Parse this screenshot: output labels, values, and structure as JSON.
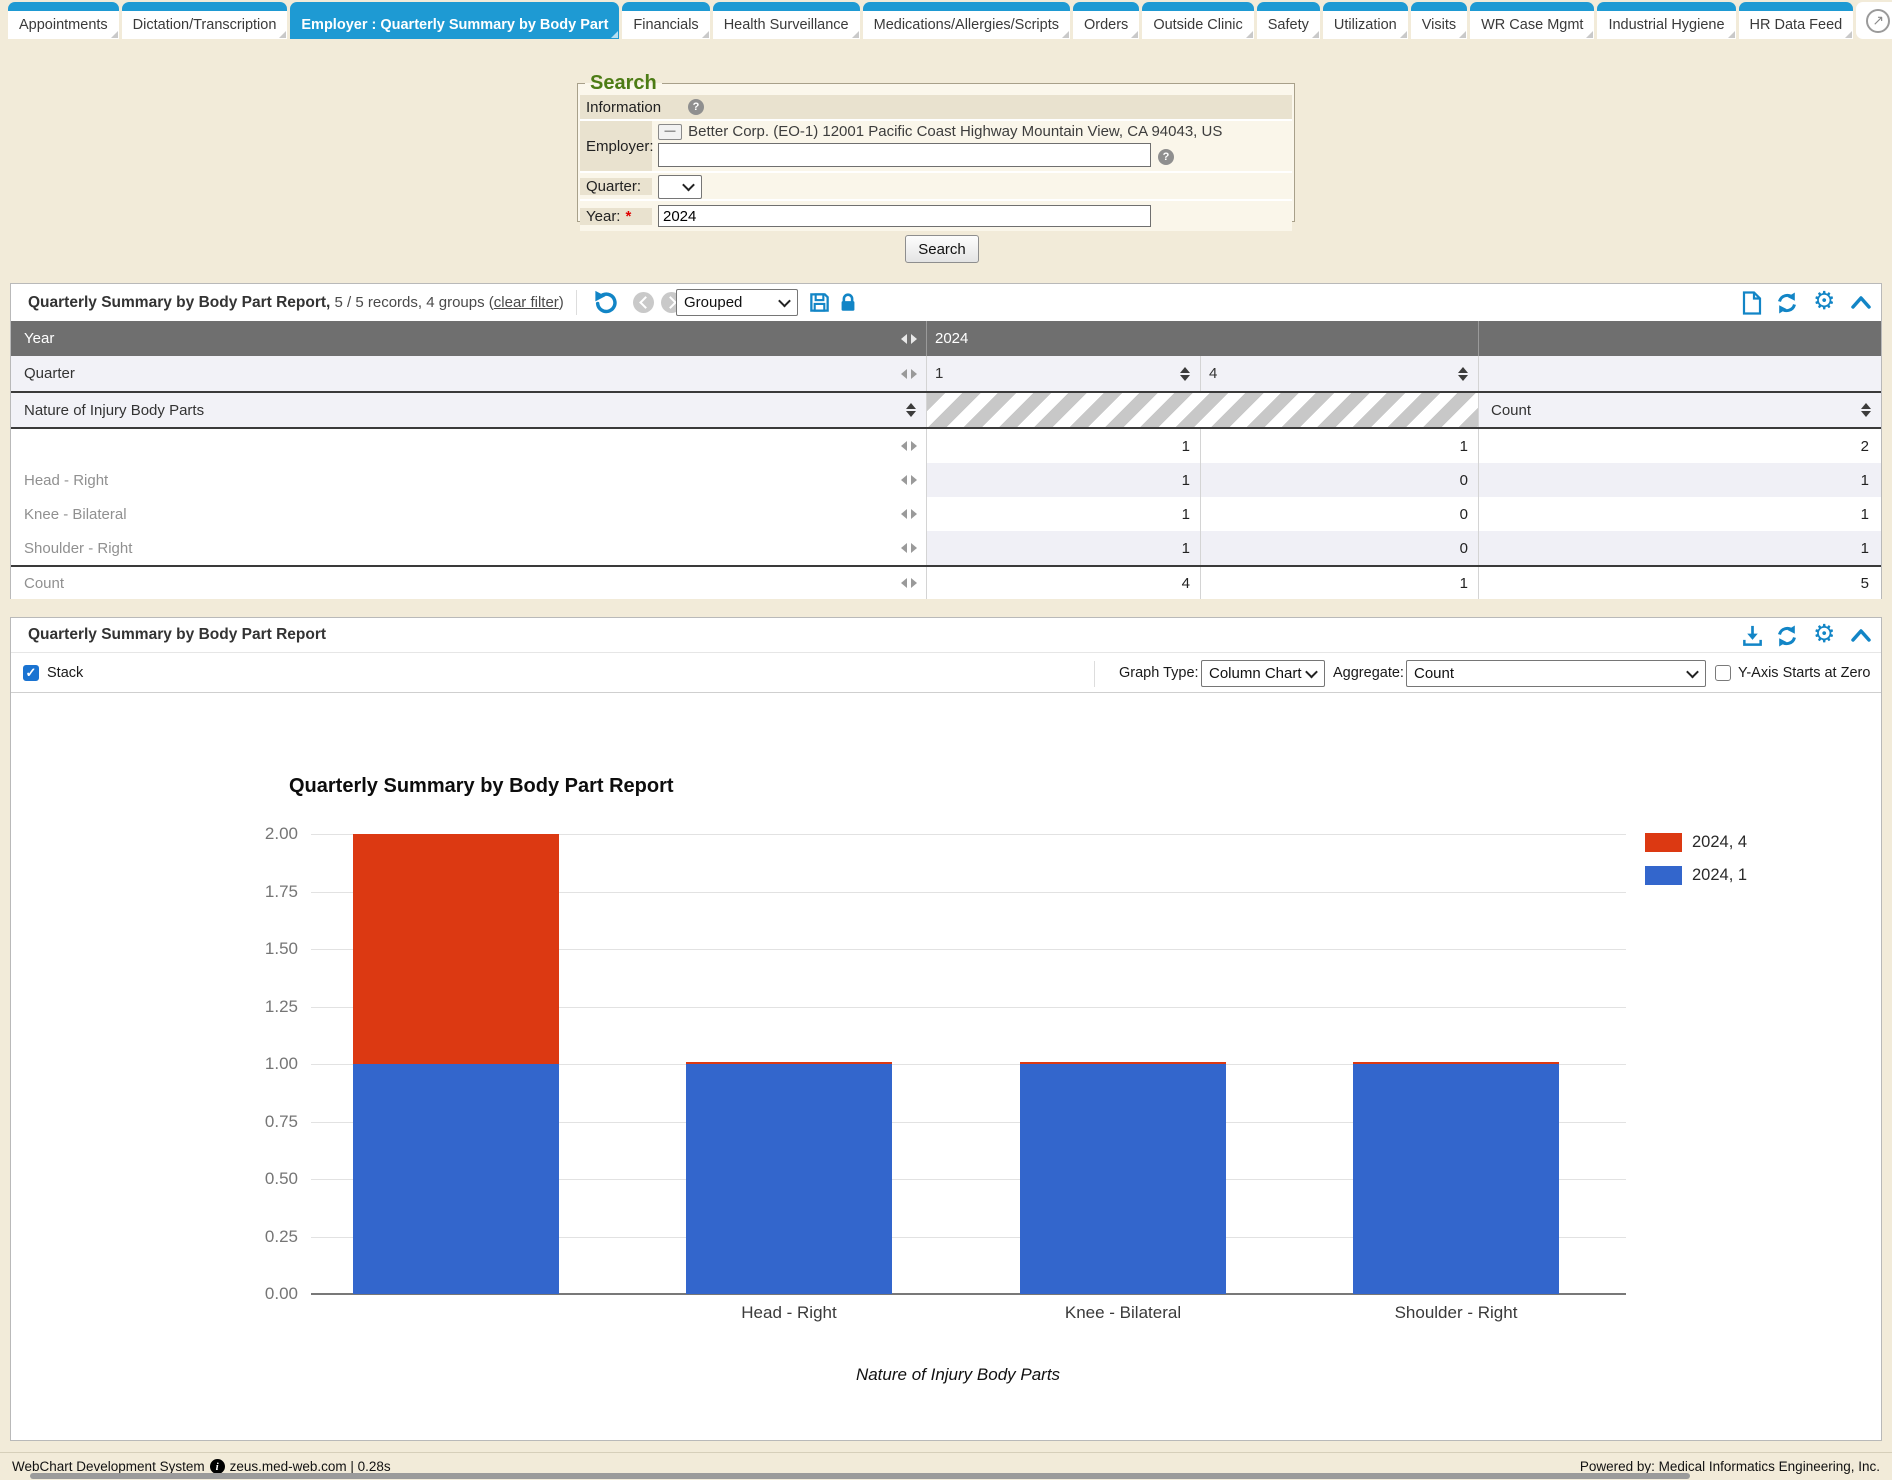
{
  "colors": {
    "tab_blue": "#1e9ad3",
    "icon_blue": "#1285c6",
    "page_bg": "#f2ebd9",
    "header_row_gray": "#6f6f6f",
    "legend_green": "#4d7c15",
    "bar_blue": "#3366cc",
    "bar_red": "#dc3912"
  },
  "tabs": {
    "items": [
      {
        "label": "Appointments",
        "active": false
      },
      {
        "label": "Dictation/Transcription",
        "active": false
      },
      {
        "label": "Employer : Quarterly Summary by Body Part",
        "active": true
      },
      {
        "label": "Financials",
        "active": false
      },
      {
        "label": "Health Surveillance",
        "active": false
      },
      {
        "label": "Medications/Allergies/Scripts",
        "active": false
      },
      {
        "label": "Orders",
        "active": false
      },
      {
        "label": "Outside Clinic",
        "active": false
      },
      {
        "label": "Safety",
        "active": false
      },
      {
        "label": "Utilization",
        "active": false
      },
      {
        "label": "Visits",
        "active": false
      },
      {
        "label": "WR Case Mgmt",
        "active": false
      },
      {
        "label": "Industrial Hygiene",
        "active": false
      },
      {
        "label": "HR Data Feed",
        "active": false
      }
    ],
    "overflow_icon": "external-link"
  },
  "search": {
    "legend": "Search",
    "information_label": "Information",
    "employer_label": "Employer:",
    "employer_collapse": "—",
    "employer_value": "Better Corp. (EO-1) 12001 Pacific Coast Highway Mountain View, CA 94043, US",
    "employer_input": "",
    "quarter_label": "Quarter:",
    "quarter_value": "",
    "year_label": "Year:",
    "required_marker": "*",
    "year_value": "2024",
    "search_button": "Search"
  },
  "report": {
    "title": "Quarterly Summary by Body Part Report,",
    "records_text": " 5 / 5 records, 4 groups (",
    "clear_filter": "clear filter",
    "records_close": ")",
    "view_select": "Grouped",
    "header": {
      "year_label": "Year",
      "year_value": "2024",
      "quarter_label": "Quarter",
      "quarter_col1": "1",
      "quarter_col2": "4",
      "nature_label": "Nature of Injury Body Parts",
      "count_label": "Count"
    },
    "rows": [
      {
        "label": "",
        "q1": "1",
        "q4": "1",
        "count": "2"
      },
      {
        "label": "Head - Right",
        "q1": "1",
        "q4": "0",
        "count": "1"
      },
      {
        "label": "Knee - Bilateral",
        "q1": "1",
        "q4": "0",
        "count": "1"
      },
      {
        "label": "Shoulder - Right",
        "q1": "1",
        "q4": "0",
        "count": "1"
      }
    ],
    "total": {
      "label": "Count",
      "q1": "4",
      "q4": "1",
      "count": "5"
    }
  },
  "chart_panel": {
    "title": "Quarterly Summary by Body Part Report",
    "stack_label": "Stack",
    "graph_type_label": "Graph Type:",
    "graph_type_value": "Column Chart",
    "aggregate_label": "Aggregate:",
    "aggregate_value": "Count",
    "y_axis_zero_label": "Y-Axis Starts at Zero"
  },
  "chart_data": {
    "type": "bar",
    "stacked": true,
    "title": "Quarterly Summary by Body Part Report",
    "xlabel": "Nature of Injury Body Parts",
    "ylabel": "",
    "categories": [
      "",
      "Head - Right",
      "Knee - Bilateral",
      "Shoulder - Right"
    ],
    "series": [
      {
        "name": "2024, 1",
        "color": "#3366cc",
        "values": [
          1,
          1,
          1,
          1
        ]
      },
      {
        "name": "2024, 4",
        "color": "#dc3912",
        "values": [
          1,
          0,
          0,
          0
        ]
      }
    ],
    "ylim": [
      0,
      2
    ],
    "yticks": [
      "0.00",
      "0.25",
      "0.50",
      "0.75",
      "1.00",
      "1.25",
      "1.50",
      "1.75",
      "2.00"
    ],
    "legend": [
      "2024, 4",
      "2024, 1"
    ],
    "legend_position": "right",
    "grid": true
  },
  "footer": {
    "left_product": "WebChart Development System",
    "left_host": "zeus.med-web.com | 0.28s",
    "right": "Powered by: Medical Informatics Engineering, Inc."
  }
}
